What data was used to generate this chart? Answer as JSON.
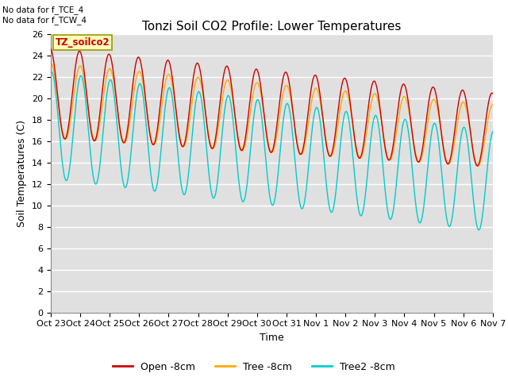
{
  "title": "Tonzi Soil CO2 Profile: Lower Temperatures",
  "xlabel": "Time",
  "ylabel": "Soil Temperatures (C)",
  "ylim": [
    0,
    26
  ],
  "annotation1": "No data for f_TCE_4",
  "annotation2": "No data for f_TCW_4",
  "box_label": "TZ_soilco2",
  "legend_entries": [
    "Open -8cm",
    "Tree -8cm",
    "Tree2 -8cm"
  ],
  "line_colors": [
    "#cc0000",
    "#ffaa00",
    "#00cccc"
  ],
  "xtick_labels": [
    "Oct 23",
    "Oct 24",
    "Oct 25",
    "Oct 26",
    "Oct 27",
    "Oct 28",
    "Oct 29",
    "Oct 30",
    "Oct 31",
    "Nov 1",
    "Nov 2",
    "Nov 3",
    "Nov 4",
    "Nov 5",
    "Nov 6",
    "Nov 7"
  ],
  "background_color": "#e0e0e0",
  "title_fontsize": 11,
  "axis_fontsize": 9,
  "tick_fontsize": 8
}
